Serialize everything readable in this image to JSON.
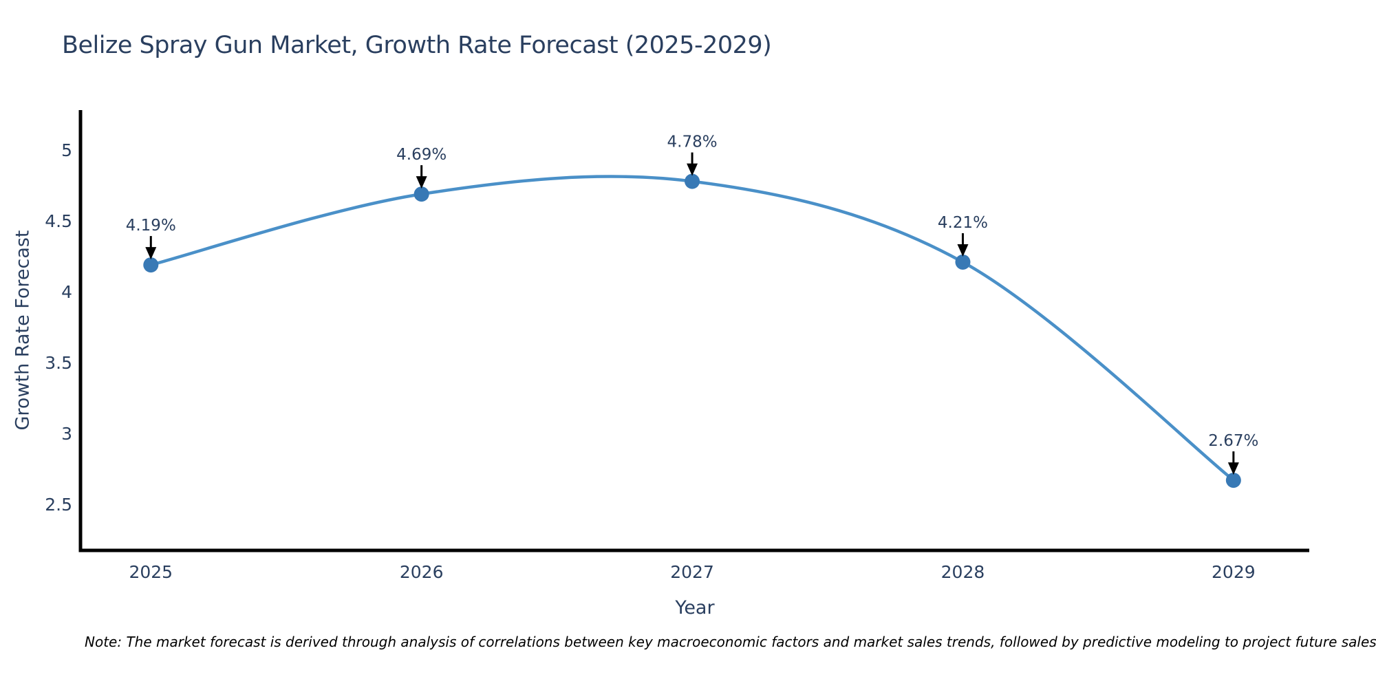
{
  "chart_data": {
    "type": "line",
    "title": "Belize Spray Gun Market, Growth Rate Forecast (2025-2029)",
    "xlabel": "Year",
    "ylabel": "Growth Rate Forecast",
    "x": [
      2025,
      2026,
      2027,
      2028,
      2029
    ],
    "series": [
      {
        "name": "Growth Rate Forecast",
        "values": [
          4.19,
          4.69,
          4.78,
          4.21,
          2.67
        ],
        "point_labels": [
          "4.19%",
          "4.69%",
          "4.78%",
          "4.21%",
          "2.67%"
        ]
      }
    ],
    "xticks": [
      "2025",
      "2026",
      "2027",
      "2028",
      "2029"
    ],
    "yticks": [
      2.5,
      3,
      3.5,
      4,
      4.5,
      5
    ],
    "xlim": [
      2024.74,
      2029.28
    ],
    "ylim": [
      2.175,
      5.283
    ],
    "line_shape": "spline",
    "grid": false,
    "legend_position": "none",
    "colors": {
      "line": "#4a90c8",
      "marker": "#3879b5",
      "arrow": "#000000",
      "label_text": "#2a3f5f",
      "axis_line": "#000000",
      "tick_text": "#2a3f5f"
    },
    "note": "Note: The market forecast is derived through analysis of correlations between key macroeconomic factors and market sales trends, followed by predictive modeling to project future sales"
  }
}
